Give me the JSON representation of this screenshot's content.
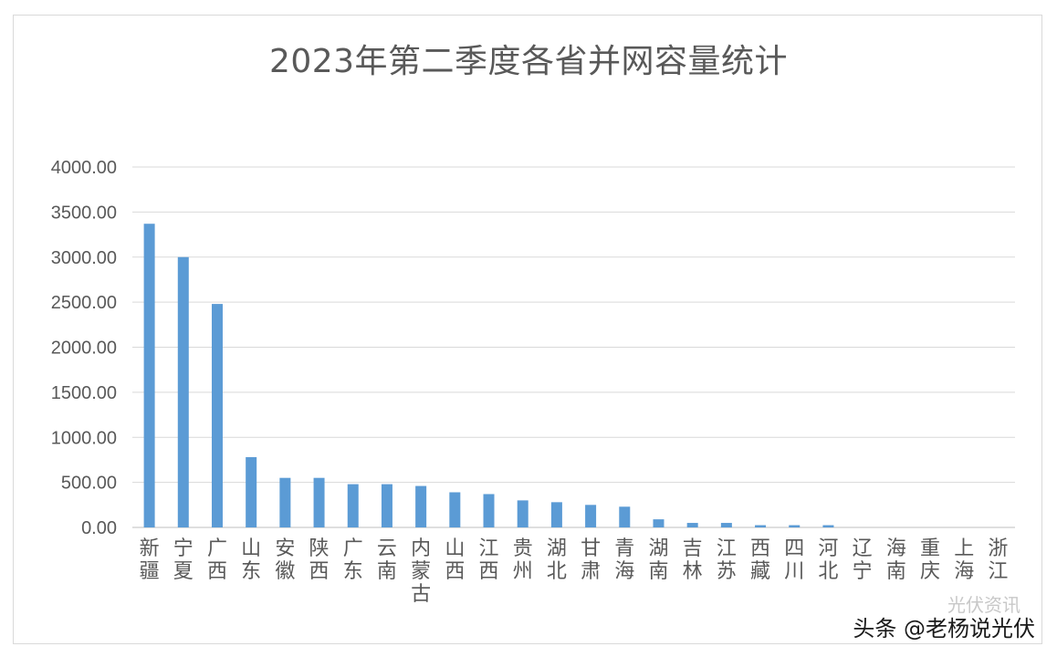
{
  "chart_data": {
    "type": "bar",
    "title": "2023年第二季度各省并网容量统计",
    "categories": [
      "新疆",
      "宁夏",
      "广西",
      "山东",
      "安徽",
      "陕西",
      "广东",
      "云南",
      "内蒙古",
      "山西",
      "江西",
      "贵州",
      "湖北",
      "甘肃",
      "青海",
      "湖南",
      "吉林",
      "江苏",
      "西藏",
      "四川",
      "河北",
      "辽宁",
      "海南",
      "重庆",
      "上海",
      "浙江"
    ],
    "values": [
      3370,
      3000,
      2480,
      780,
      550,
      550,
      480,
      480,
      460,
      390,
      370,
      300,
      280,
      250,
      230,
      90,
      50,
      50,
      25,
      25,
      25,
      0,
      0,
      0,
      0,
      0
    ],
    "yticks": [
      "0.00",
      "500.00",
      "1000.00",
      "1500.00",
      "2000.00",
      "2500.00",
      "3000.00",
      "3500.00",
      "4000.00"
    ],
    "ylim": [
      0,
      4000
    ],
    "bar_color": "#5b9bd5",
    "grid": true,
    "legend": "none"
  },
  "watermark": {
    "primary": "头条 @老杨说光伏",
    "secondary": "光伏资讯"
  }
}
